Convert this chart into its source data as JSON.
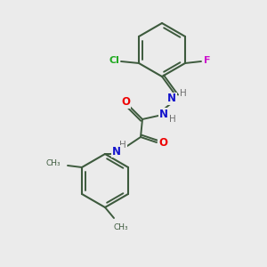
{
  "bg_color": "#ebebeb",
  "bond_color": "#3d5a3d",
  "atom_colors": {
    "O": "#ee0000",
    "N": "#1414cc",
    "Cl": "#22aa22",
    "F": "#cc11cc",
    "H": "#707070",
    "C": "#3d5a3d"
  }
}
